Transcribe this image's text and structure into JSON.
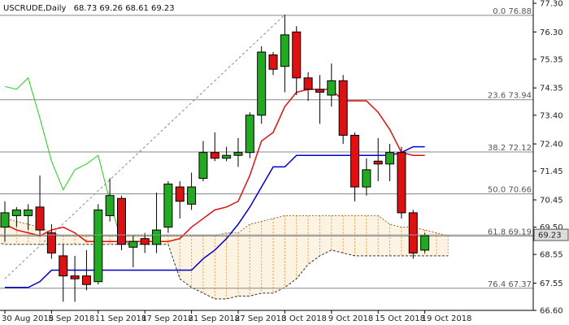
{
  "chart_data": {
    "type": "candlestick",
    "symbol_timeframe": "USCRUDE,Daily",
    "ohlc_header": "68.73 69.26 68.61 69.23",
    "current_price_label": "69.23",
    "y_axis": {
      "min": 66.6,
      "max": 77.3,
      "ticks": [
        "77.30",
        "76.30",
        "75.35",
        "74.35",
        "73.40",
        "72.40",
        "71.45",
        "70.45",
        "69.50",
        "68.55",
        "67.55",
        "66.60"
      ]
    },
    "x_axis": {
      "labels": [
        "30 Aug 2018",
        "5 Sep 2018",
        "11 Sep 2018",
        "17 Sep 2018",
        "21 Sep 2018",
        "27 Sep 2018",
        "3 Oct 2018",
        "9 Oct 2018",
        "15 Oct 2018",
        "19 Oct 2018"
      ],
      "label_bar_index": [
        0,
        4,
        8,
        12,
        16,
        20,
        24,
        28,
        32,
        36
      ]
    },
    "candles": [
      {
        "o": 69.5,
        "h": 70.4,
        "l": 69.0,
        "c": 70.0
      },
      {
        "o": 69.9,
        "h": 70.2,
        "l": 69.5,
        "c": 70.1
      },
      {
        "o": 69.9,
        "h": 70.3,
        "l": 69.4,
        "c": 70.1
      },
      {
        "o": 70.2,
        "h": 71.3,
        "l": 69.2,
        "c": 69.4
      },
      {
        "o": 69.3,
        "h": 69.6,
        "l": 68.4,
        "c": 68.6
      },
      {
        "o": 68.5,
        "h": 68.9,
        "l": 66.9,
        "c": 67.8
      },
      {
        "o": 67.8,
        "h": 68.5,
        "l": 66.9,
        "c": 67.7
      },
      {
        "o": 67.8,
        "h": 68.7,
        "l": 67.3,
        "c": 67.5
      },
      {
        "o": 67.6,
        "h": 70.3,
        "l": 67.5,
        "c": 70.1
      },
      {
        "o": 69.9,
        "h": 71.2,
        "l": 69.7,
        "c": 70.6
      },
      {
        "o": 70.5,
        "h": 70.6,
        "l": 68.7,
        "c": 68.9
      },
      {
        "o": 68.8,
        "h": 69.2,
        "l": 68.1,
        "c": 69.0
      },
      {
        "o": 69.1,
        "h": 69.3,
        "l": 68.6,
        "c": 68.9
      },
      {
        "o": 68.9,
        "h": 70.7,
        "l": 68.6,
        "c": 69.4
      },
      {
        "o": 69.5,
        "h": 71.1,
        "l": 69.3,
        "c": 71.0
      },
      {
        "o": 70.9,
        "h": 71.1,
        "l": 69.8,
        "c": 70.4
      },
      {
        "o": 70.3,
        "h": 71.4,
        "l": 70.1,
        "c": 70.9
      },
      {
        "o": 71.2,
        "h": 72.5,
        "l": 71.1,
        "c": 72.1
      },
      {
        "o": 72.1,
        "h": 72.8,
        "l": 71.8,
        "c": 71.9
      },
      {
        "o": 71.9,
        "h": 72.3,
        "l": 71.8,
        "c": 72.0
      },
      {
        "o": 72.0,
        "h": 72.6,
        "l": 71.6,
        "c": 72.1
      },
      {
        "o": 72.1,
        "h": 73.5,
        "l": 71.9,
        "c": 73.4
      },
      {
        "o": 73.4,
        "h": 75.8,
        "l": 73.1,
        "c": 75.6
      },
      {
        "o": 75.5,
        "h": 75.6,
        "l": 74.8,
        "c": 75.0
      },
      {
        "o": 75.1,
        "h": 76.9,
        "l": 74.2,
        "c": 76.2
      },
      {
        "o": 76.3,
        "h": 76.5,
        "l": 74.1,
        "c": 74.7
      },
      {
        "o": 74.7,
        "h": 74.9,
        "l": 73.9,
        "c": 74.3
      },
      {
        "o": 74.3,
        "h": 74.8,
        "l": 73.1,
        "c": 74.2
      },
      {
        "o": 74.1,
        "h": 75.2,
        "l": 73.7,
        "c": 74.6
      },
      {
        "o": 74.6,
        "h": 74.8,
        "l": 72.4,
        "c": 72.7
      },
      {
        "o": 72.7,
        "h": 72.8,
        "l": 70.4,
        "c": 70.9
      },
      {
        "o": 70.9,
        "h": 71.9,
        "l": 70.6,
        "c": 71.5
      },
      {
        "o": 71.8,
        "h": 72.6,
        "l": 71.1,
        "c": 71.7
      },
      {
        "o": 71.7,
        "h": 72.4,
        "l": 71.1,
        "c": 72.1
      },
      {
        "o": 72.1,
        "h": 72.3,
        "l": 69.8,
        "c": 70.0
      },
      {
        "o": 70.0,
        "h": 70.1,
        "l": 68.4,
        "c": 68.6
      },
      {
        "o": 68.7,
        "h": 69.3,
        "l": 68.6,
        "c": 69.2
      }
    ],
    "fib_levels": [
      {
        "label": "0.0 76.88",
        "value": 76.88
      },
      {
        "label": "23.6 73.94",
        "value": 73.94
      },
      {
        "label": "38.2 72.12",
        "value": 72.12
      },
      {
        "label": "50.0 70.66",
        "value": 70.66
      },
      {
        "label": "61.8 69.19",
        "value": 69.19
      },
      {
        "label": "76.4 67.37",
        "value": 67.37
      }
    ],
    "trend_line": {
      "from": {
        "bar": 0,
        "value": 67.7
      },
      "to": {
        "bar": 24,
        "value": 76.9
      }
    },
    "tenkan_line": [
      69.6,
      69.4,
      69.3,
      69.2,
      69.4,
      69.5,
      69.3,
      69.0,
      69.0,
      69.0,
      69.0,
      69.0,
      69.0,
      69.0,
      69.0,
      69.1,
      69.5,
      69.8,
      70.1,
      70.2,
      70.4,
      71.3,
      72.5,
      72.8,
      73.7,
      74.2,
      74.3,
      74.3,
      74.3,
      73.9,
      73.9,
      73.9,
      73.5,
      72.9,
      72.1,
      72.0,
      72.0
    ],
    "kijun_line": [
      67.4,
      67.4,
      67.4,
      67.6,
      68.0,
      68.0,
      68.0,
      68.0,
      68.0,
      68.0,
      68.0,
      68.0,
      68.0,
      68.0,
      68.0,
      68.0,
      68.0,
      68.4,
      68.7,
      69.1,
      69.6,
      70.2,
      70.9,
      71.6,
      71.6,
      72.0,
      72.0,
      72.0,
      72.0,
      72.0,
      72.0,
      72.0,
      72.0,
      72.0,
      72.1,
      72.3,
      72.3
    ],
    "chikou_line": [
      {
        "bar": 0,
        "value": 74.4
      },
      {
        "bar": 1,
        "value": 74.3
      },
      {
        "bar": 2,
        "value": 74.7
      },
      {
        "bar": 3,
        "value": 73.3
      },
      {
        "bar": 4,
        "value": 71.8
      },
      {
        "bar": 5,
        "value": 70.8
      },
      {
        "bar": 6,
        "value": 71.5
      },
      {
        "bar": 7,
        "value": 71.7
      },
      {
        "bar": 8,
        "value": 72.0
      },
      {
        "bar": 9,
        "value": 70.4
      },
      {
        "bar": 10,
        "value": 69.0
      },
      {
        "bar": 11,
        "value": 68.9
      }
    ],
    "cloud_top": [
      70.0,
      69.9,
      69.8,
      69.7,
      69.6,
      69.5,
      69.3,
      69.2,
      69.2,
      69.2,
      69.2,
      69.2,
      69.2,
      69.2,
      69.2,
      69.2,
      69.2,
      69.2,
      69.2,
      69.2,
      69.2,
      69.3,
      69.3,
      69.6,
      69.7,
      69.8,
      69.9,
      69.9,
      69.9,
      69.9,
      69.9,
      69.9,
      69.9,
      69.9,
      69.9,
      69.6,
      69.5,
      69.5,
      69.4,
      69.3,
      69.2
    ],
    "cloud_bottom": [
      69.1,
      69.0,
      68.9,
      68.9,
      68.9,
      68.9,
      68.9,
      68.9,
      68.9,
      68.9,
      68.9,
      68.9,
      68.9,
      68.9,
      68.9,
      68.9,
      68.9,
      67.7,
      67.4,
      67.2,
      67.0,
      67.0,
      67.1,
      67.1,
      67.2,
      67.2,
      67.4,
      67.7,
      68.2,
      68.5,
      68.7,
      68.6,
      68.5,
      68.5,
      68.5,
      68.5,
      68.5,
      68.5,
      68.5,
      68.5,
      68.5
    ],
    "cloud_start_bar": -2,
    "colors": {
      "bull": "#22aa22",
      "bear": "#dd1111",
      "tenkan": "#dd1111",
      "kijun": "#0000cc",
      "chikou": "#22cc22",
      "cloud": "#e0a040",
      "fib": "#888888",
      "trend": "#888888",
      "price_box": "#dddddd"
    }
  }
}
